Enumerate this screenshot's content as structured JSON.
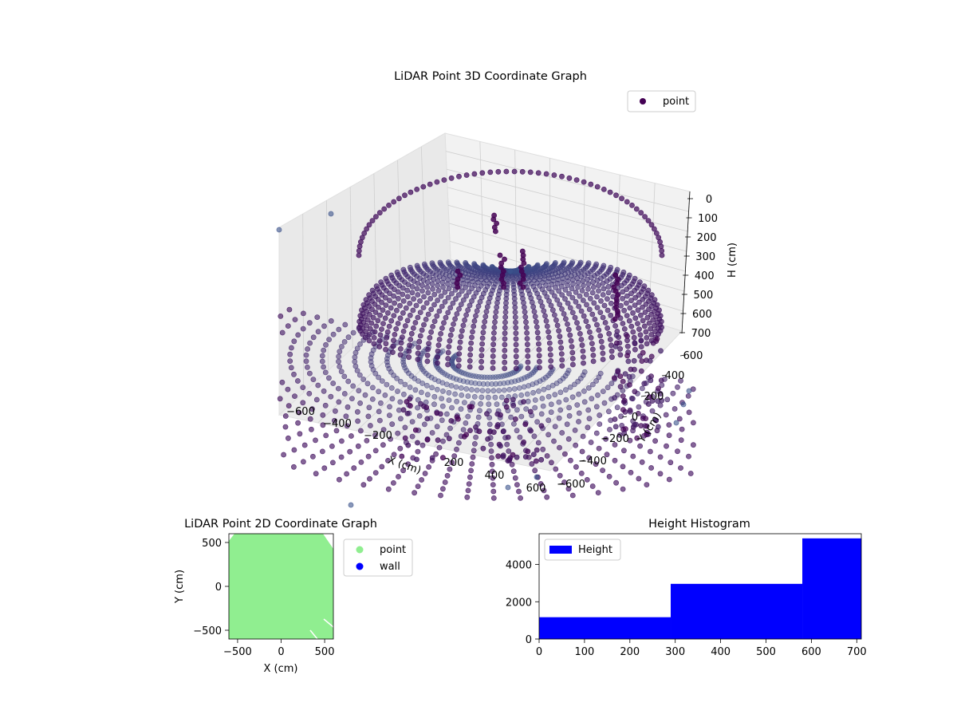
{
  "chart_data": [
    {
      "type": "scatter",
      "projection": "3d",
      "title": "LiDAR Point 3D Coordinate Graph",
      "xlabel": "X (cm)",
      "ylabel": "Y (cm)",
      "zlabel": "H (cm)",
      "xlim": [
        -600,
        600
      ],
      "ylim": [
        -600,
        600
      ],
      "zlim": [
        700,
        0
      ],
      "x_ticks": [
        "−600",
        "−400",
        "−200",
        "200",
        "400",
        "600"
      ],
      "y_ticks": [
        "600",
        "400",
        "200",
        "0",
        "−200",
        "−400",
        "−600"
      ],
      "z_ticks": [
        "0",
        "100",
        "200",
        "300",
        "400",
        "500",
        "600",
        "700"
      ],
      "legend": [
        {
          "label": "point",
          "color": "#440154"
        }
      ],
      "legend_position": "upper right",
      "colormap": [
        "#440154",
        "#3b528b"
      ],
      "shape": "hemispherical dome of scan rings with radial floor spokes and outlier wall points"
    },
    {
      "type": "scatter",
      "title": "LiDAR Point 2D Coordinate Graph",
      "xlabel": "X (cm)",
      "ylabel": "Y (cm)",
      "xlim": [
        -600,
        600
      ],
      "ylim": [
        -600,
        600
      ],
      "x_ticks": [
        "−500",
        "0",
        "500"
      ],
      "y_ticks": [
        "500",
        "0",
        "−500"
      ],
      "series": [
        {
          "name": "point",
          "color": "#90ee90"
        },
        {
          "name": "wall",
          "color": "#0000ff"
        }
      ],
      "legend_position": "outside right"
    },
    {
      "type": "bar",
      "title": "Height Histogram",
      "x_ticks": [
        "0",
        "100",
        "200",
        "300",
        "400",
        "500",
        "600",
        "700"
      ],
      "y_ticks": [
        "0",
        "2000",
        "4000"
      ],
      "xlim": [
        0,
        710
      ],
      "ylim": [
        0,
        5650
      ],
      "bins": [
        {
          "from": 0,
          "to": 290,
          "count": 1170
        },
        {
          "from": 290,
          "to": 580,
          "count": 2960
        },
        {
          "from": 580,
          "to": 710,
          "count": 5400
        }
      ],
      "legend": [
        {
          "label": "Height",
          "color": "#0000ff"
        }
      ],
      "legend_position": "upper left",
      "color": "#0000ff"
    }
  ]
}
